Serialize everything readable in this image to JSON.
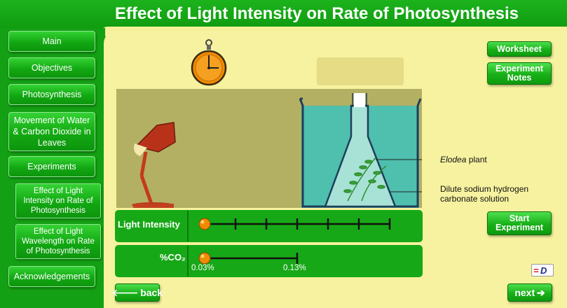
{
  "header": {
    "title": "Effect of Light Intensity on Rate of Photosynthesis"
  },
  "sidebar": {
    "main": "Main",
    "objectives": "Objectives",
    "photosynthesis": "Photosynthesis",
    "movement": "Movement of Water & Carbon Dioxide in Leaves",
    "experiments": "Experiments",
    "effect_intensity": "Effect of Light Intensity on Rate of Photosynthesis",
    "effect_wavelength": "Effect of Light Wavelength on Rate of Photosynthesis",
    "acknowledgements": "Acknowledgements"
  },
  "buttons": {
    "worksheet": "Worksheet",
    "experiment_notes": "Experiment Notes",
    "start_experiment": "Start Experiment",
    "back": "back",
    "next": "next"
  },
  "scene": {
    "elodea_word": "Elodea",
    "elodea_rest": " plant",
    "solution_line1": "Dilute sodium hydrogen",
    "solution_line2": "carbonate solution"
  },
  "controls": {
    "light_label": "Light Intensity",
    "co2_label": "%CO₂",
    "co2_min": "0.03%",
    "co2_max": "0.13%",
    "light_level": 0,
    "co2_level": 0
  },
  "colors": {
    "green": "#14a014",
    "background": "#f6f29f",
    "scene": "#b3b063",
    "water": "#4fbfae",
    "knob": "#f08a00"
  }
}
